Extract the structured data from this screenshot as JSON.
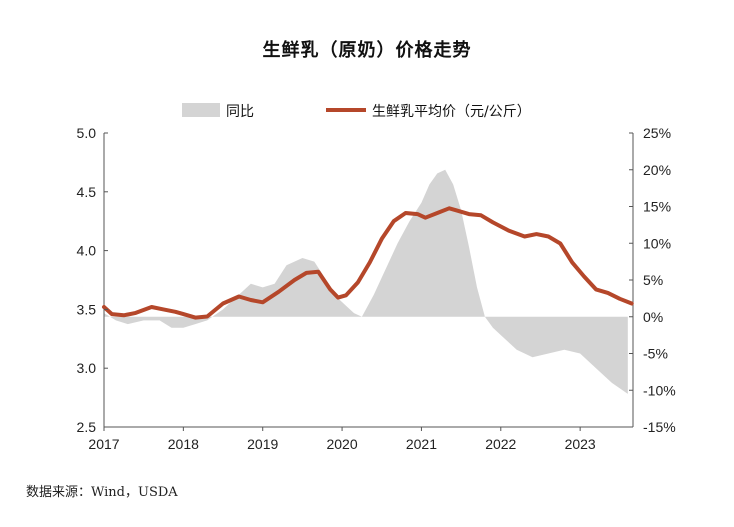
{
  "chart_data": {
    "type": "line",
    "title": "生鲜乳（原奶）价格走势",
    "source": "数据来源：Wind，USDA",
    "x_tick_labels": [
      "2017",
      "2018",
      "2019",
      "2020",
      "2021",
      "2022",
      "2023"
    ],
    "y_left": {
      "min": 2.5,
      "max": 5.0,
      "ticks": [
        "2.5",
        "3.0",
        "3.5",
        "4.0",
        "4.5",
        "5.0"
      ]
    },
    "y_right": {
      "min": -15,
      "max": 25,
      "ticks": [
        "-15%",
        "-10%",
        "-5%",
        "0%",
        "5%",
        "10%",
        "15%",
        "20%",
        "25%"
      ]
    },
    "grid": false,
    "legend_position": "top",
    "series": [
      {
        "name": "同比",
        "type": "area",
        "axis": "right",
        "color": "#d4d4d4",
        "x": [
          2017.0,
          2017.15,
          2017.3,
          2017.5,
          2017.7,
          2017.85,
          2018.0,
          2018.15,
          2018.3,
          2018.5,
          2018.7,
          2018.85,
          2019.0,
          2019.15,
          2019.3,
          2019.5,
          2019.65,
          2019.8,
          2019.95,
          2020.05,
          2020.15,
          2020.25,
          2020.4,
          2020.55,
          2020.7,
          2020.85,
          2021.0,
          2021.1,
          2021.2,
          2021.3,
          2021.4,
          2021.5,
          2021.6,
          2021.7,
          2021.8,
          2021.9,
          2022.0,
          2022.2,
          2022.4,
          2022.6,
          2022.8,
          2023.0,
          2023.2,
          2023.4,
          2023.6
        ],
        "values": [
          0.5,
          -0.5,
          -1.0,
          -0.5,
          -0.5,
          -1.5,
          -1.5,
          -1.0,
          -0.5,
          1.0,
          3.0,
          4.5,
          4.0,
          4.5,
          7.0,
          8.0,
          7.5,
          5.0,
          2.5,
          1.5,
          0.5,
          0.0,
          3.0,
          6.5,
          10.0,
          13.0,
          15.5,
          18.0,
          19.5,
          20.0,
          18.0,
          14.5,
          9.5,
          4.0,
          0.0,
          -1.5,
          -2.5,
          -4.5,
          -5.5,
          -5.0,
          -4.5,
          -5.0,
          -7.0,
          -9.0,
          -10.5
        ]
      },
      {
        "name": "生鲜乳平均价（元/公斤）",
        "type": "line",
        "axis": "left",
        "color": "#b5472a",
        "x": [
          2017.0,
          2017.1,
          2017.25,
          2017.4,
          2017.6,
          2017.75,
          2017.9,
          2018.0,
          2018.15,
          2018.3,
          2018.5,
          2018.7,
          2018.85,
          2019.0,
          2019.2,
          2019.4,
          2019.55,
          2019.7,
          2019.85,
          2019.95,
          2020.05,
          2020.2,
          2020.35,
          2020.5,
          2020.65,
          2020.8,
          2020.95,
          2021.05,
          2021.2,
          2021.35,
          2021.45,
          2021.6,
          2021.75,
          2021.9,
          2022.1,
          2022.3,
          2022.45,
          2022.6,
          2022.75,
          2022.9,
          2023.05,
          2023.2,
          2023.35,
          2023.5,
          2023.65
        ],
        "values": [
          3.52,
          3.46,
          3.45,
          3.47,
          3.52,
          3.5,
          3.48,
          3.46,
          3.43,
          3.44,
          3.55,
          3.61,
          3.58,
          3.56,
          3.65,
          3.75,
          3.81,
          3.82,
          3.67,
          3.6,
          3.62,
          3.73,
          3.9,
          4.1,
          4.25,
          4.32,
          4.31,
          4.28,
          4.32,
          4.36,
          4.34,
          4.31,
          4.3,
          4.24,
          4.17,
          4.12,
          4.14,
          4.12,
          4.06,
          3.9,
          3.78,
          3.67,
          3.64,
          3.59,
          3.55
        ]
      }
    ]
  }
}
